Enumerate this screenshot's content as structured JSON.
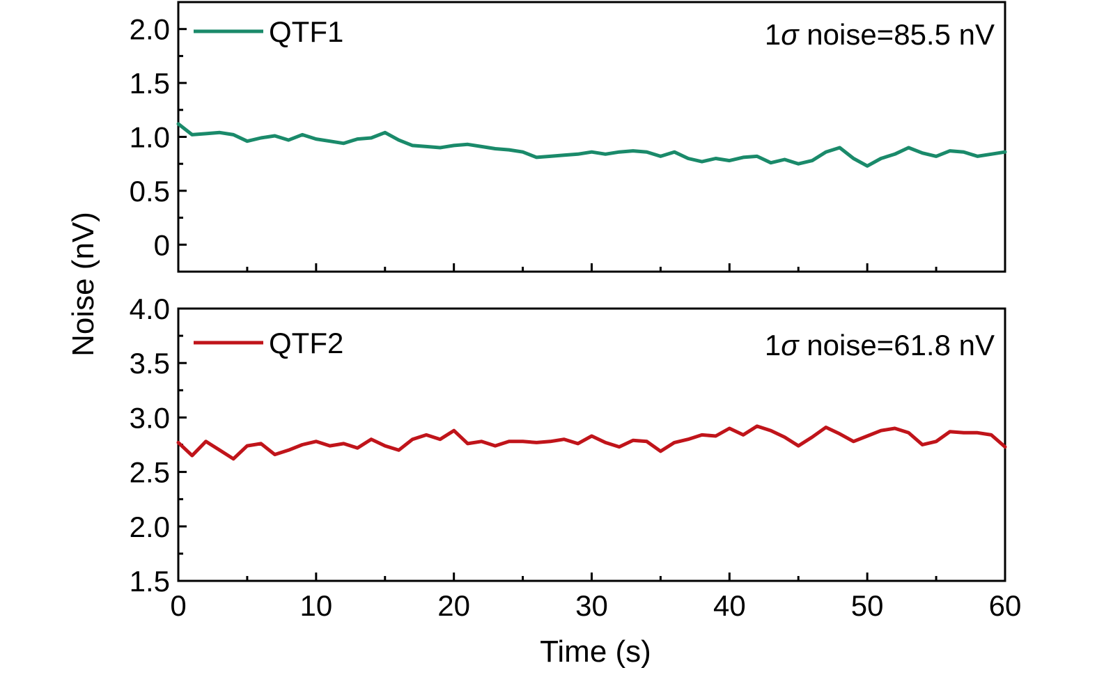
{
  "chart_data": [
    {
      "type": "line",
      "xlabel": "",
      "ylabel": "",
      "xlim": [
        0,
        60
      ],
      "ylim": [
        -0.25,
        2.25
      ],
      "x_major_ticks": [
        0,
        10,
        20,
        30,
        40,
        50,
        60
      ],
      "x_tick_labels": [
        "",
        "",
        "",
        "",
        "",
        "",
        ""
      ],
      "y_major_ticks": [
        0,
        0.5,
        1.0,
        1.5,
        2.0
      ],
      "y_tick_labels": [
        "0",
        "0.5",
        "1.0",
        "1.5",
        "2.0"
      ],
      "grid": false,
      "legend_position": "top-left",
      "annotation": {
        "prefix": "1",
        "symbol": "σ",
        "text": " noise=85.5 nV"
      },
      "series": [
        {
          "name": "QTF1",
          "color": "#1a8a6a",
          "x": [
            0,
            1,
            2,
            3,
            4,
            5,
            6,
            7,
            8,
            9,
            10,
            11,
            12,
            13,
            14,
            15,
            16,
            17,
            18,
            19,
            20,
            21,
            22,
            23,
            24,
            25,
            26,
            27,
            28,
            29,
            30,
            31,
            32,
            33,
            34,
            35,
            36,
            37,
            38,
            39,
            40,
            41,
            42,
            43,
            44,
            45,
            46,
            47,
            48,
            49,
            50,
            51,
            52,
            53,
            54,
            55,
            56,
            57,
            58,
            59,
            60
          ],
          "values": [
            1.12,
            1.02,
            1.03,
            1.04,
            1.02,
            0.96,
            0.99,
            1.01,
            0.97,
            1.02,
            0.98,
            0.96,
            0.94,
            0.98,
            0.99,
            1.04,
            0.97,
            0.92,
            0.91,
            0.9,
            0.92,
            0.93,
            0.91,
            0.89,
            0.88,
            0.86,
            0.81,
            0.82,
            0.83,
            0.84,
            0.86,
            0.84,
            0.86,
            0.87,
            0.86,
            0.82,
            0.86,
            0.8,
            0.77,
            0.8,
            0.78,
            0.81,
            0.82,
            0.76,
            0.79,
            0.75,
            0.78,
            0.86,
            0.9,
            0.8,
            0.73,
            0.8,
            0.84,
            0.9,
            0.85,
            0.82,
            0.87,
            0.86,
            0.82,
            0.84,
            0.86
          ]
        }
      ]
    },
    {
      "type": "line",
      "xlabel": "Time (s)",
      "ylabel": "",
      "xlim": [
        0,
        60
      ],
      "ylim": [
        1.5,
        4.0
      ],
      "x_major_ticks": [
        0,
        10,
        20,
        30,
        40,
        50,
        60
      ],
      "x_tick_labels": [
        "0",
        "10",
        "20",
        "30",
        "40",
        "50",
        "60"
      ],
      "y_major_ticks": [
        1.5,
        2.0,
        2.5,
        3.0,
        3.5,
        4.0
      ],
      "y_tick_labels": [
        "1.5",
        "2.0",
        "2.5",
        "3.0",
        "3.5",
        "4.0"
      ],
      "grid": false,
      "legend_position": "top-left",
      "annotation": {
        "prefix": "1",
        "symbol": "σ",
        "text": " noise=61.8 nV"
      },
      "series": [
        {
          "name": "QTF2",
          "color": "#c0141a",
          "x": [
            0,
            1,
            2,
            3,
            4,
            5,
            6,
            7,
            8,
            9,
            10,
            11,
            12,
            13,
            14,
            15,
            16,
            17,
            18,
            19,
            20,
            21,
            22,
            23,
            24,
            25,
            26,
            27,
            28,
            29,
            30,
            31,
            32,
            33,
            34,
            35,
            36,
            37,
            38,
            39,
            40,
            41,
            42,
            43,
            44,
            45,
            46,
            47,
            48,
            49,
            50,
            51,
            52,
            53,
            54,
            55,
            56,
            57,
            58,
            59,
            60
          ],
          "values": [
            2.77,
            2.65,
            2.78,
            2.7,
            2.62,
            2.74,
            2.76,
            2.66,
            2.7,
            2.75,
            2.78,
            2.74,
            2.76,
            2.72,
            2.8,
            2.74,
            2.7,
            2.8,
            2.84,
            2.8,
            2.88,
            2.76,
            2.78,
            2.74,
            2.78,
            2.78,
            2.77,
            2.78,
            2.8,
            2.76,
            2.83,
            2.77,
            2.73,
            2.79,
            2.78,
            2.69,
            2.77,
            2.8,
            2.84,
            2.83,
            2.9,
            2.84,
            2.92,
            2.88,
            2.82,
            2.74,
            2.82,
            2.91,
            2.85,
            2.78,
            2.83,
            2.88,
            2.9,
            2.86,
            2.75,
            2.78,
            2.87,
            2.86,
            2.86,
            2.84,
            2.73
          ]
        }
      ]
    }
  ],
  "shared_ylabel": "Noise (nV)"
}
